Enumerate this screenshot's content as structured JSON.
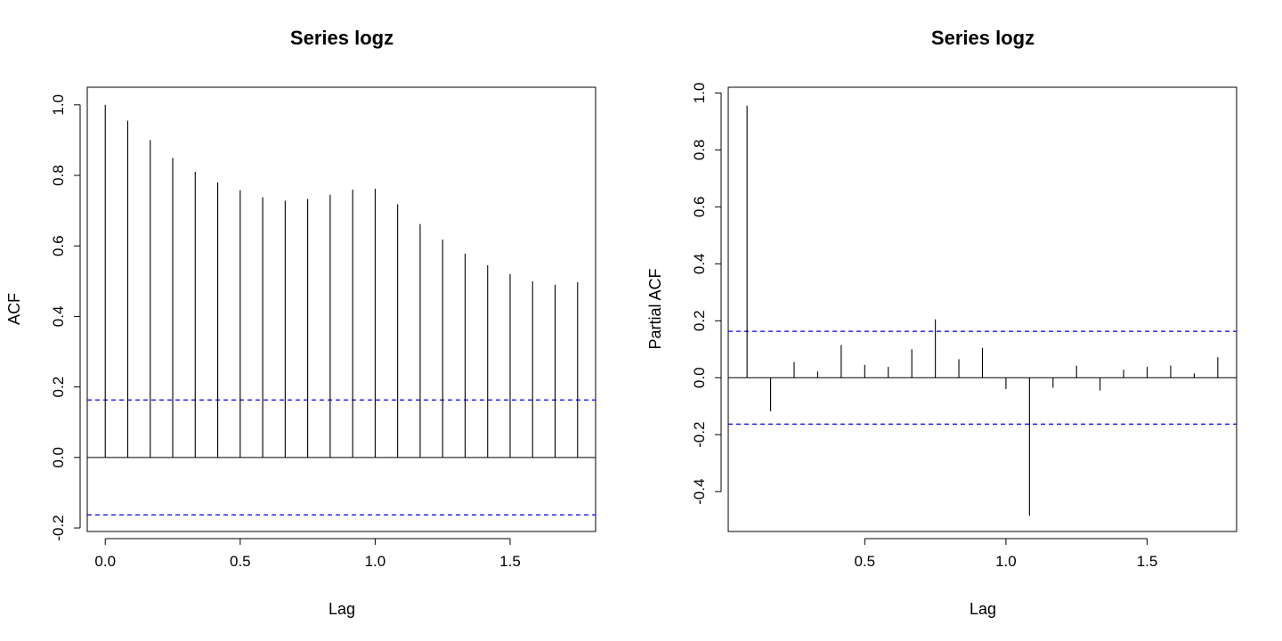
{
  "chart_data": [
    {
      "type": "bar",
      "title": "Series  logz",
      "xlabel": "Lag",
      "ylabel": "ACF",
      "xlim": [
        -0.0667,
        1.8167
      ],
      "ylim": [
        -0.21,
        1.05
      ],
      "xticks": [
        0.0,
        0.5,
        1.0,
        1.5
      ],
      "xtick_labels": [
        "0.0",
        "0.5",
        "1.0",
        "1.5"
      ],
      "yticks": [
        -0.2,
        0.0,
        0.2,
        0.4,
        0.6,
        0.8,
        1.0
      ],
      "ytick_labels": [
        "-0.2",
        "0.0",
        "0.2",
        "0.4",
        "0.6",
        "0.8",
        "1.0"
      ],
      "confidence_bound": 0.163,
      "confidence_color": "#0000ff",
      "line_color": "#000000",
      "lags": [
        0.0,
        0.0833,
        0.1667,
        0.25,
        0.3333,
        0.4167,
        0.5,
        0.5833,
        0.6667,
        0.75,
        0.8333,
        0.9167,
        1.0,
        1.0833,
        1.1667,
        1.25,
        1.3333,
        1.4167,
        1.5,
        1.5833,
        1.6667,
        1.75
      ],
      "values": [
        1.0,
        0.955,
        0.9,
        0.85,
        0.81,
        0.78,
        0.758,
        0.738,
        0.728,
        0.733,
        0.745,
        0.76,
        0.762,
        0.718,
        0.662,
        0.618,
        0.578,
        0.545,
        0.52,
        0.5,
        0.49,
        0.497
      ]
    },
    {
      "type": "bar",
      "title": "Series  logz",
      "xlabel": "Lag",
      "ylabel": "Partial ACF",
      "xlim": [
        0.0167,
        1.8167
      ],
      "ylim": [
        -0.54,
        1.02
      ],
      "xticks": [
        0.5,
        1.0,
        1.5
      ],
      "xtick_labels": [
        "0.5",
        "1.0",
        "1.5"
      ],
      "yticks": [
        -0.4,
        -0.2,
        0.0,
        0.2,
        0.4,
        0.6,
        0.8,
        1.0
      ],
      "ytick_labels": [
        "-0.4",
        "-0.2",
        "0.0",
        "0.2",
        "0.4",
        "0.6",
        "0.8",
        "1.0"
      ],
      "confidence_bound": 0.163,
      "confidence_color": "#0000ff",
      "line_color": "#000000",
      "lags": [
        0.0833,
        0.1667,
        0.25,
        0.3333,
        0.4167,
        0.5,
        0.5833,
        0.6667,
        0.75,
        0.8333,
        0.9167,
        1.0,
        1.0833,
        1.1667,
        1.25,
        1.3333,
        1.4167,
        1.5,
        1.5833,
        1.6667,
        1.75
      ],
      "values": [
        0.955,
        -0.118,
        0.055,
        0.022,
        0.115,
        0.045,
        0.038,
        0.1,
        0.205,
        0.065,
        0.105,
        -0.04,
        -0.485,
        -0.035,
        0.042,
        -0.045,
        0.028,
        0.038,
        0.043,
        0.015,
        0.072
      ]
    }
  ]
}
